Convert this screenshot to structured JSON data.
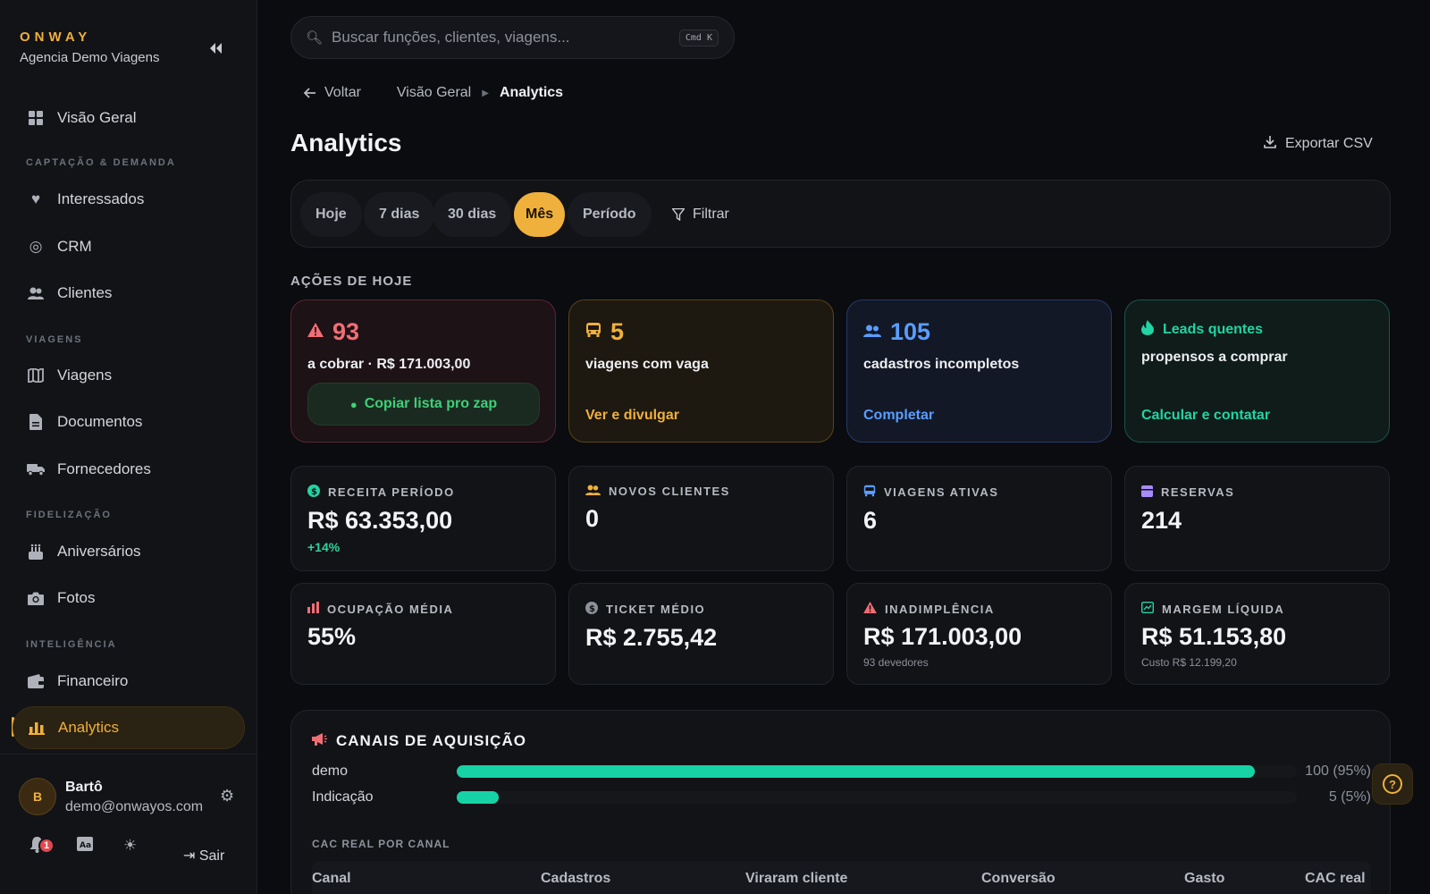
{
  "brand": {
    "name": "ONWAY",
    "agency": "Agencia Demo Viagens"
  },
  "sidebar": {
    "overview": "Visão Geral",
    "sections": {
      "captacao": "CAPTAÇÃO & DEMANDA",
      "viagens": "VIAGENS",
      "fidelizacao": "FIDELIZAÇÃO",
      "inteligencia": "INTELIGÊNCIA"
    },
    "items": {
      "interessados": "Interessados",
      "crm": "CRM",
      "clientes": "Clientes",
      "viagens": "Viagens",
      "documentos": "Documentos",
      "fornecedores": "Fornecedores",
      "aniversarios": "Aniversários",
      "fotos": "Fotos",
      "financeiro": "Financeiro",
      "analytics": "Analytics"
    }
  },
  "user": {
    "initial": "B",
    "name": "Bartô",
    "email": "demo@onwayos.com",
    "notifications": "1",
    "logout": "Sair"
  },
  "search": {
    "placeholder": "Buscar funções, clientes, viagens...",
    "shortcut": "Cmd K"
  },
  "breadcrumb": {
    "back": "Voltar",
    "parent": "Visão Geral",
    "current": "Analytics"
  },
  "page": {
    "title": "Analytics",
    "export": "Exportar CSV"
  },
  "filters": {
    "today": "Hoje",
    "d7": "7 dias",
    "d30": "30 dias",
    "month": "Mês",
    "period": "Período",
    "filter": "Filtrar"
  },
  "actions": {
    "label": "AÇÕES DE HOJE",
    "debt": {
      "count": "93",
      "desc": "a cobrar · R$ 171.003,00",
      "button": "Copiar lista pro zap"
    },
    "trips": {
      "count": "5",
      "desc": "viagens com vaga",
      "link": "Ver e divulgar"
    },
    "profiles": {
      "count": "105",
      "desc": "cadastros incompletos",
      "link": "Completar"
    },
    "leads": {
      "title": "Leads quentes",
      "desc": "propensos a comprar",
      "link": "Calcular e contatar"
    }
  },
  "kpis": {
    "receita": {
      "label": "RECEITA PERÍODO",
      "value": "R$ 63.353,00",
      "delta": "+14%"
    },
    "novos": {
      "label": "NOVOS CLIENTES",
      "value": "0"
    },
    "viagens": {
      "label": "VIAGENS ATIVAS",
      "value": "6"
    },
    "reservas": {
      "label": "RESERVAS",
      "value": "214"
    },
    "ocupacao": {
      "label": "OCUPAÇÃO MÉDIA",
      "value": "55%"
    },
    "ticket": {
      "label": "TICKET MÉDIO",
      "value": "R$ 2.755,42"
    },
    "inadimplencia": {
      "label": "INADIMPLÊNCIA",
      "value": "R$ 171.003,00",
      "sub": "93 devedores"
    },
    "margem": {
      "label": "MARGEM LÍQUIDA",
      "value": "R$ 51.153,80",
      "sub": "Custo R$ 12.199,20"
    }
  },
  "channels": {
    "title": "CANAIS DE AQUISIÇÃO",
    "rows": [
      {
        "name": "demo",
        "value": "100 (95%)",
        "share": 0.95
      },
      {
        "name": "Indicação",
        "value": "5 (5%)",
        "share": 0.05
      }
    ],
    "cac_label": "CAC REAL POR CANAL",
    "cac_columns": [
      "Canal",
      "Cadastros",
      "Viraram cliente",
      "Conversão",
      "Gasto",
      "CAC real"
    ]
  },
  "colors": {
    "accent": "#f0b03c",
    "danger": "#f16e74",
    "info": "#5b9dff",
    "success": "#23d3a3"
  }
}
